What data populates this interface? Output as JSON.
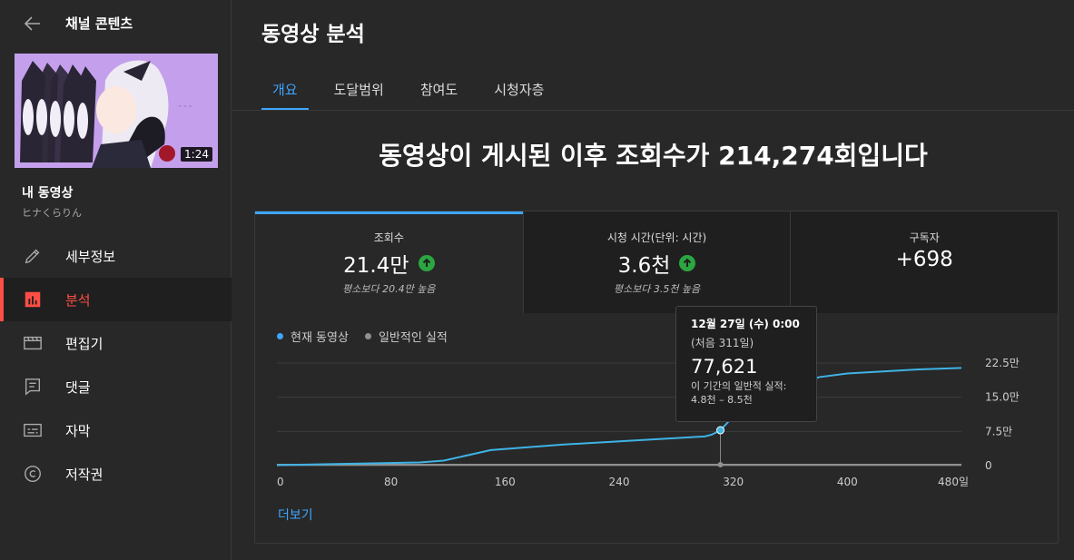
{
  "sidebar": {
    "title": "채널 콘텐츠",
    "thumbnail_duration": "1:24",
    "video_title": "내 동영상",
    "channel_name": "ヒナくらりん",
    "nav": [
      {
        "label": "세부정보",
        "icon": "pencil-icon"
      },
      {
        "label": "분석",
        "icon": "analytics-icon",
        "active": true
      },
      {
        "label": "편집기",
        "icon": "editor-icon"
      },
      {
        "label": "댓글",
        "icon": "comments-icon"
      },
      {
        "label": "자막",
        "icon": "subtitles-icon"
      },
      {
        "label": "저작권",
        "icon": "copyright-icon"
      }
    ]
  },
  "main": {
    "title": "동영상 분석",
    "tabs": [
      "개요",
      "도달범위",
      "참여도",
      "시청자층"
    ],
    "headline": "동영상이 게시된 이후 조회수가 214,274회입니다",
    "metrics": [
      {
        "label": "조회수",
        "value": "21.4만",
        "trend": "up",
        "sub": "평소보다 20.4만 높음"
      },
      {
        "label": "시청 시간(단위: 시간)",
        "value": "3.6천",
        "trend": "up",
        "sub": "평소보다 3.5천 높음"
      },
      {
        "label": "구독자",
        "value": "+698"
      }
    ],
    "legend": [
      {
        "label": "현재 동영상",
        "color": "#3ea6ff"
      },
      {
        "label": "일반적인 실적",
        "color": "#909090"
      }
    ],
    "more_label": "더보기",
    "tooltip": {
      "date": "12월 27일 (수) 0:00",
      "days": "(처음 311일)",
      "value": "77,621",
      "note_line1": "이 기간의 일반적 실적:",
      "note_line2": "4.8천 – 8.5천"
    }
  },
  "colors": {
    "accent": "#3ea6ff",
    "active_nav": "#ff4e45",
    "trend_up": "#2ba640",
    "line": "#3eb3e6"
  },
  "chart_data": {
    "type": "line",
    "x_tick_labels": [
      "0",
      "80",
      "160",
      "240",
      "320",
      "400",
      "480일"
    ],
    "y_tick_labels": [
      "0",
      "7.5만",
      "15.0만",
      "22.5만"
    ],
    "xlim": [
      0,
      480
    ],
    "ylim": [
      0,
      225000
    ],
    "series": [
      {
        "name": "현재 동영상",
        "x": [
          0,
          50,
          100,
          117,
          150,
          200,
          250,
          300,
          305,
          311,
          320,
          360,
          380,
          400,
          450,
          480
        ],
        "y": [
          1000,
          4000,
          7000,
          11000,
          34000,
          46000,
          55000,
          64000,
          68000,
          77621,
          108000,
          170000,
          194000,
          202000,
          211000,
          214274
        ]
      },
      {
        "name": "일반적인 실적",
        "x": [
          0,
          311,
          480
        ],
        "y": [
          0,
          0,
          0
        ]
      }
    ],
    "highlight": {
      "x": 311,
      "y": 77621
    },
    "grid": true,
    "legend_position": "top-left"
  }
}
